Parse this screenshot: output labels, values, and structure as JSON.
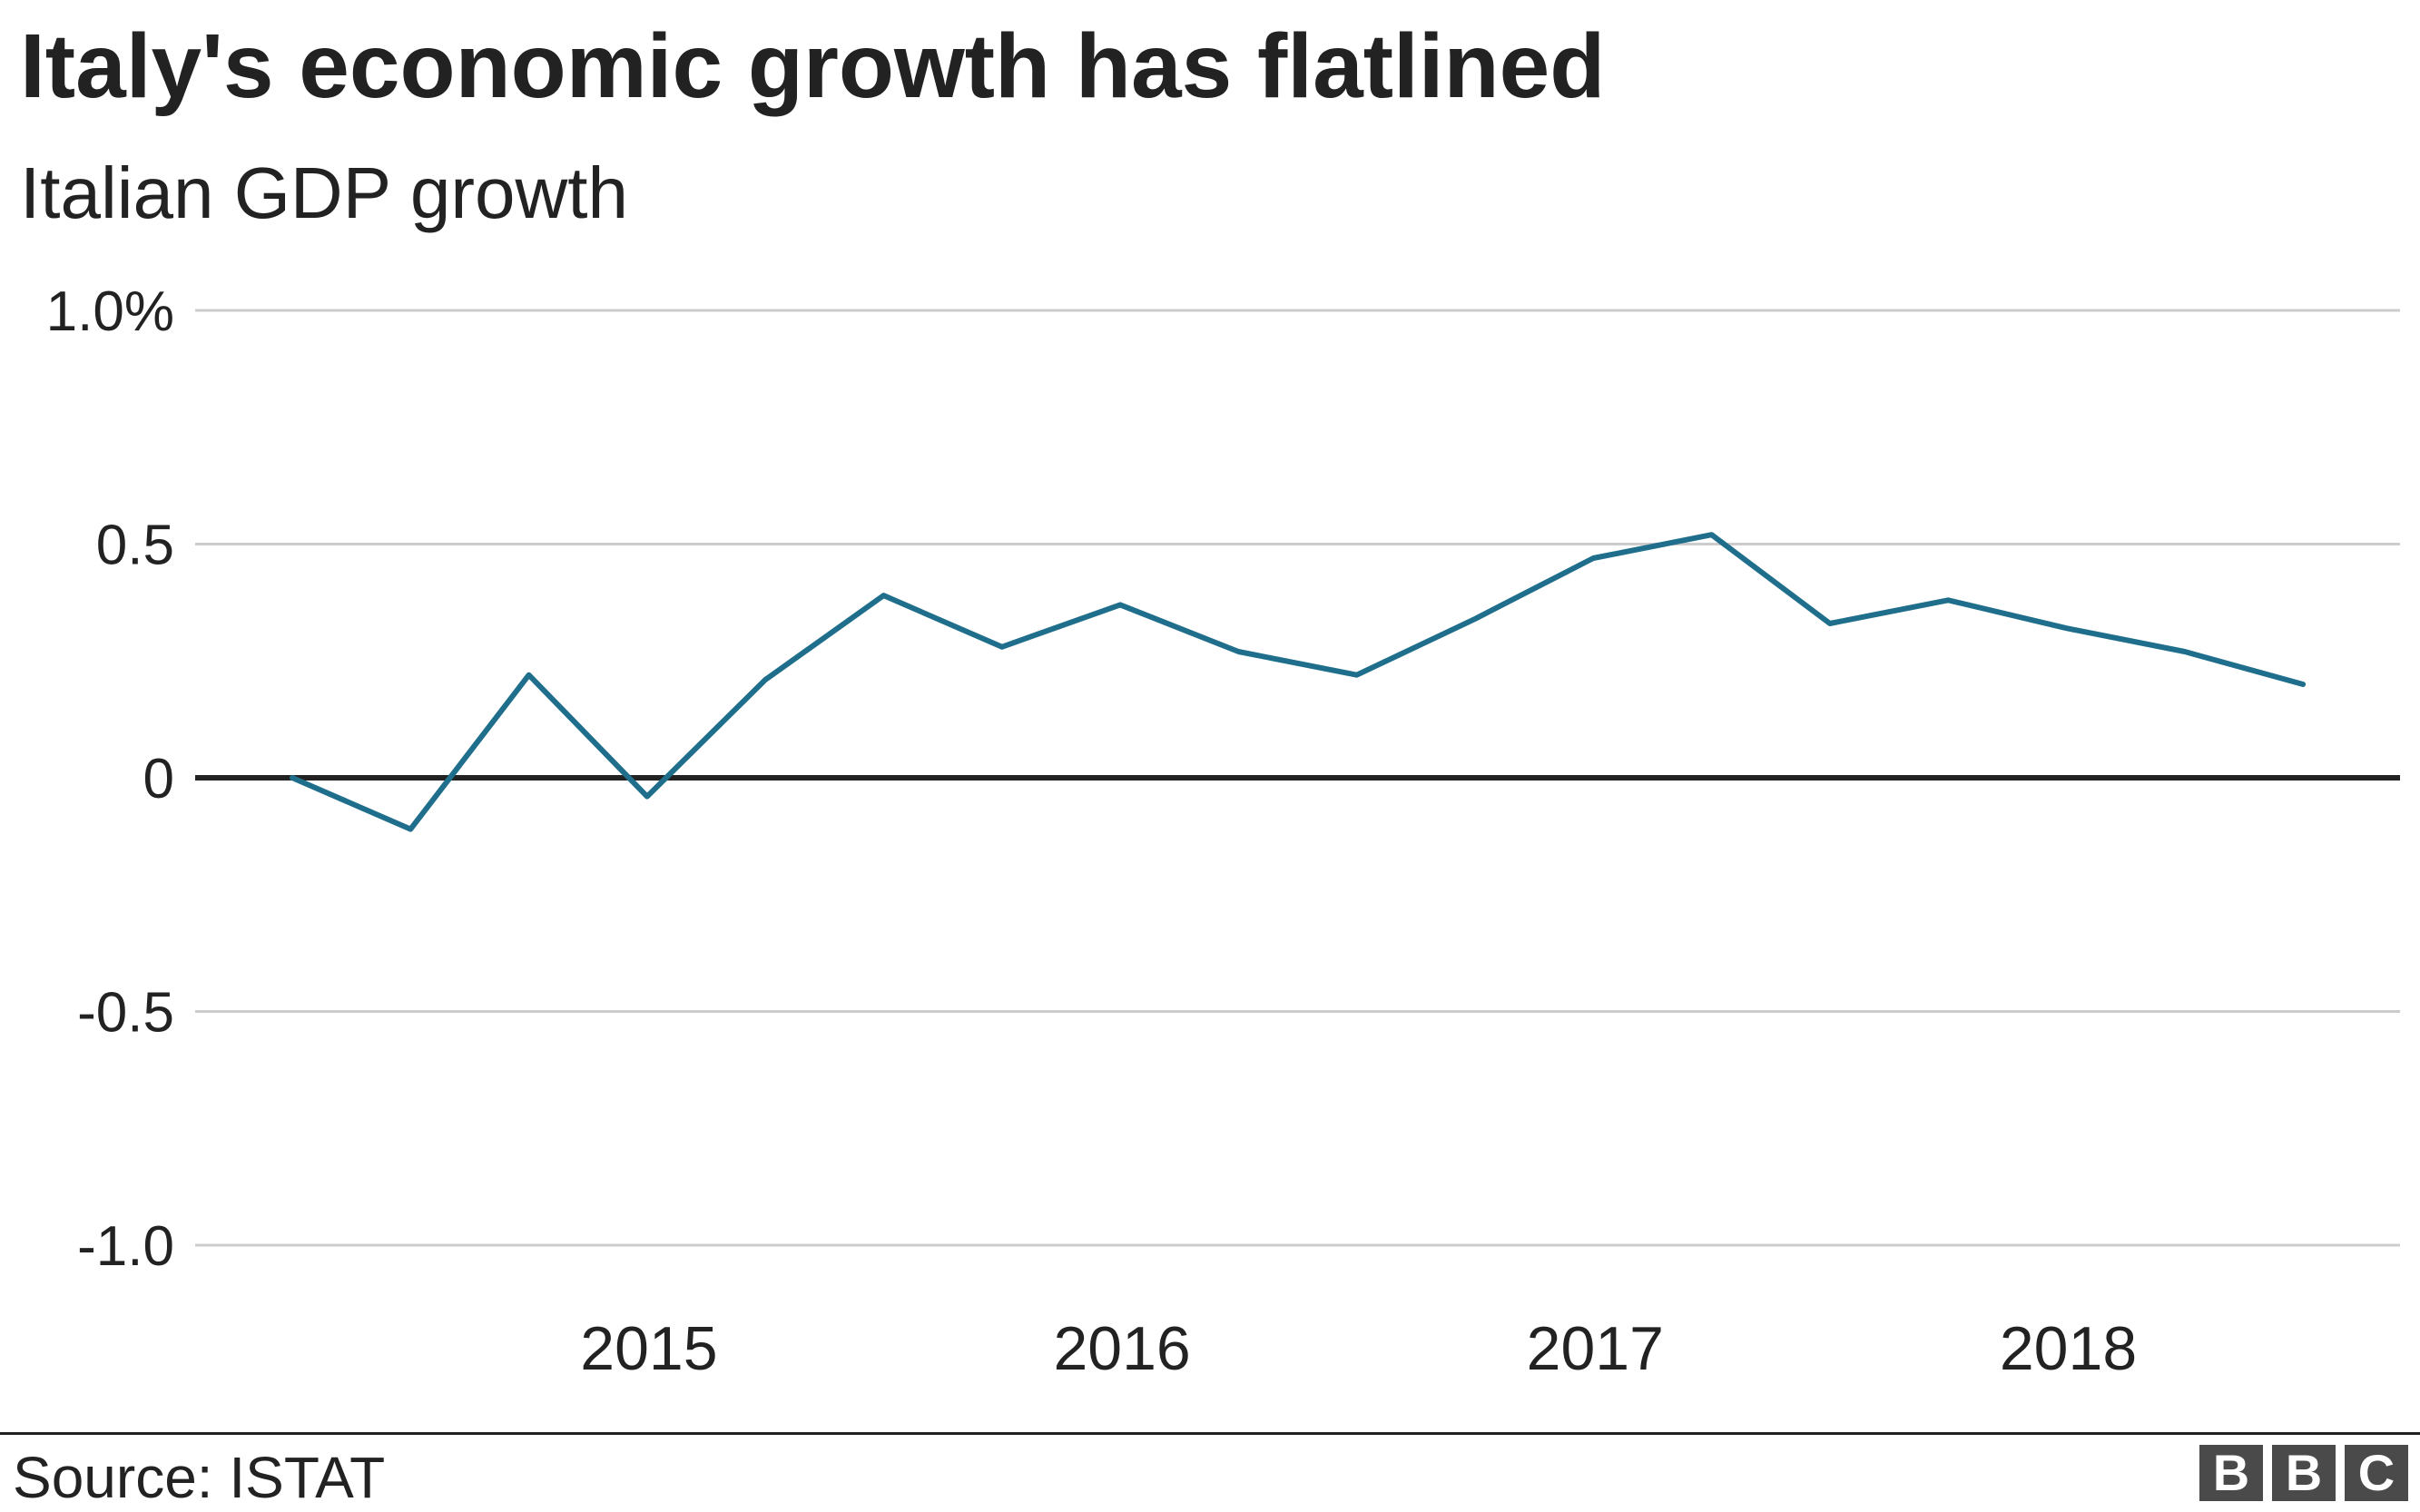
{
  "header": {
    "title": "Italy's economic growth has flatlined",
    "subtitle": "Italian GDP growth"
  },
  "footer": {
    "source": "Source: ISTAT",
    "logo": [
      "B",
      "B",
      "C"
    ]
  },
  "colors": {
    "line": "#1f6e8c",
    "grid": "#cccccc",
    "zero": "#222222",
    "logo": "#4a4a4a"
  },
  "chart_data": {
    "type": "line",
    "title": "Italy's economic growth has flatlined",
    "subtitle": "Italian GDP growth",
    "xlabel": "",
    "ylabel": "",
    "ylim": [
      -1.0,
      1.0
    ],
    "yticks": [
      1.0,
      0.5,
      0,
      -0.5,
      -1.0
    ],
    "ytick_labels": [
      "1.0%",
      "0.5",
      "0",
      "-0.5",
      "-1.0"
    ],
    "xtick_labels": [
      "2015",
      "2016",
      "2017",
      "2018"
    ],
    "grid": true,
    "legend": "none",
    "series": [
      {
        "x": [
          "2014 Q2",
          "2014 Q3",
          "2014 Q4",
          "2015 Q1",
          "2015 Q2",
          "2015 Q3",
          "2015 Q4",
          "2016 Q1",
          "2016 Q2",
          "2016 Q3",
          "2016 Q4",
          "2017 Q1",
          "2017 Q2",
          "2017 Q3",
          "2017 Q4",
          "2018 Q1",
          "2018 Q2",
          "2018 Q3"
        ],
        "values": [
          0.0,
          -0.11,
          0.22,
          -0.04,
          0.21,
          0.39,
          0.28,
          0.37,
          0.27,
          0.22,
          0.34,
          0.47,
          0.52,
          0.33,
          0.38,
          0.32,
          0.27,
          0.2
        ]
      }
    ]
  }
}
